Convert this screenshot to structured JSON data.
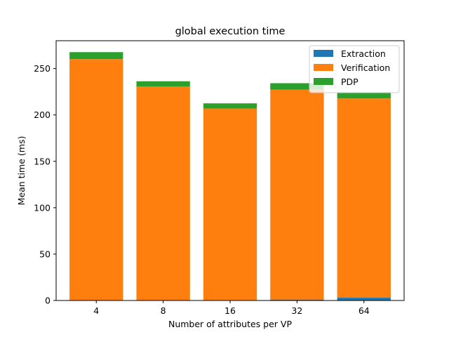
{
  "chart_data": {
    "type": "bar",
    "stacked": true,
    "title": "global execution time",
    "xlabel": "Number of attributes per VP",
    "ylabel": "Mean time (ms)",
    "categories": [
      "4",
      "8",
      "16",
      "32",
      "64"
    ],
    "ylim": [
      0,
      280
    ],
    "yticks": [
      0,
      50,
      100,
      150,
      200,
      250
    ],
    "grid": false,
    "legend_position": "top-right",
    "series": [
      {
        "name": "Extraction",
        "color": "#1f77b4",
        "values": [
          0.2,
          0.3,
          0.4,
          1.0,
          3.0
        ]
      },
      {
        "name": "Verification",
        "color": "#ff7f0e",
        "values": [
          260,
          230.5,
          206.6,
          226.2,
          214.8
        ]
      },
      {
        "name": "PDP",
        "color": "#2ca02c",
        "values": [
          7.5,
          5.5,
          5.5,
          7.0,
          6.0
        ]
      }
    ]
  }
}
